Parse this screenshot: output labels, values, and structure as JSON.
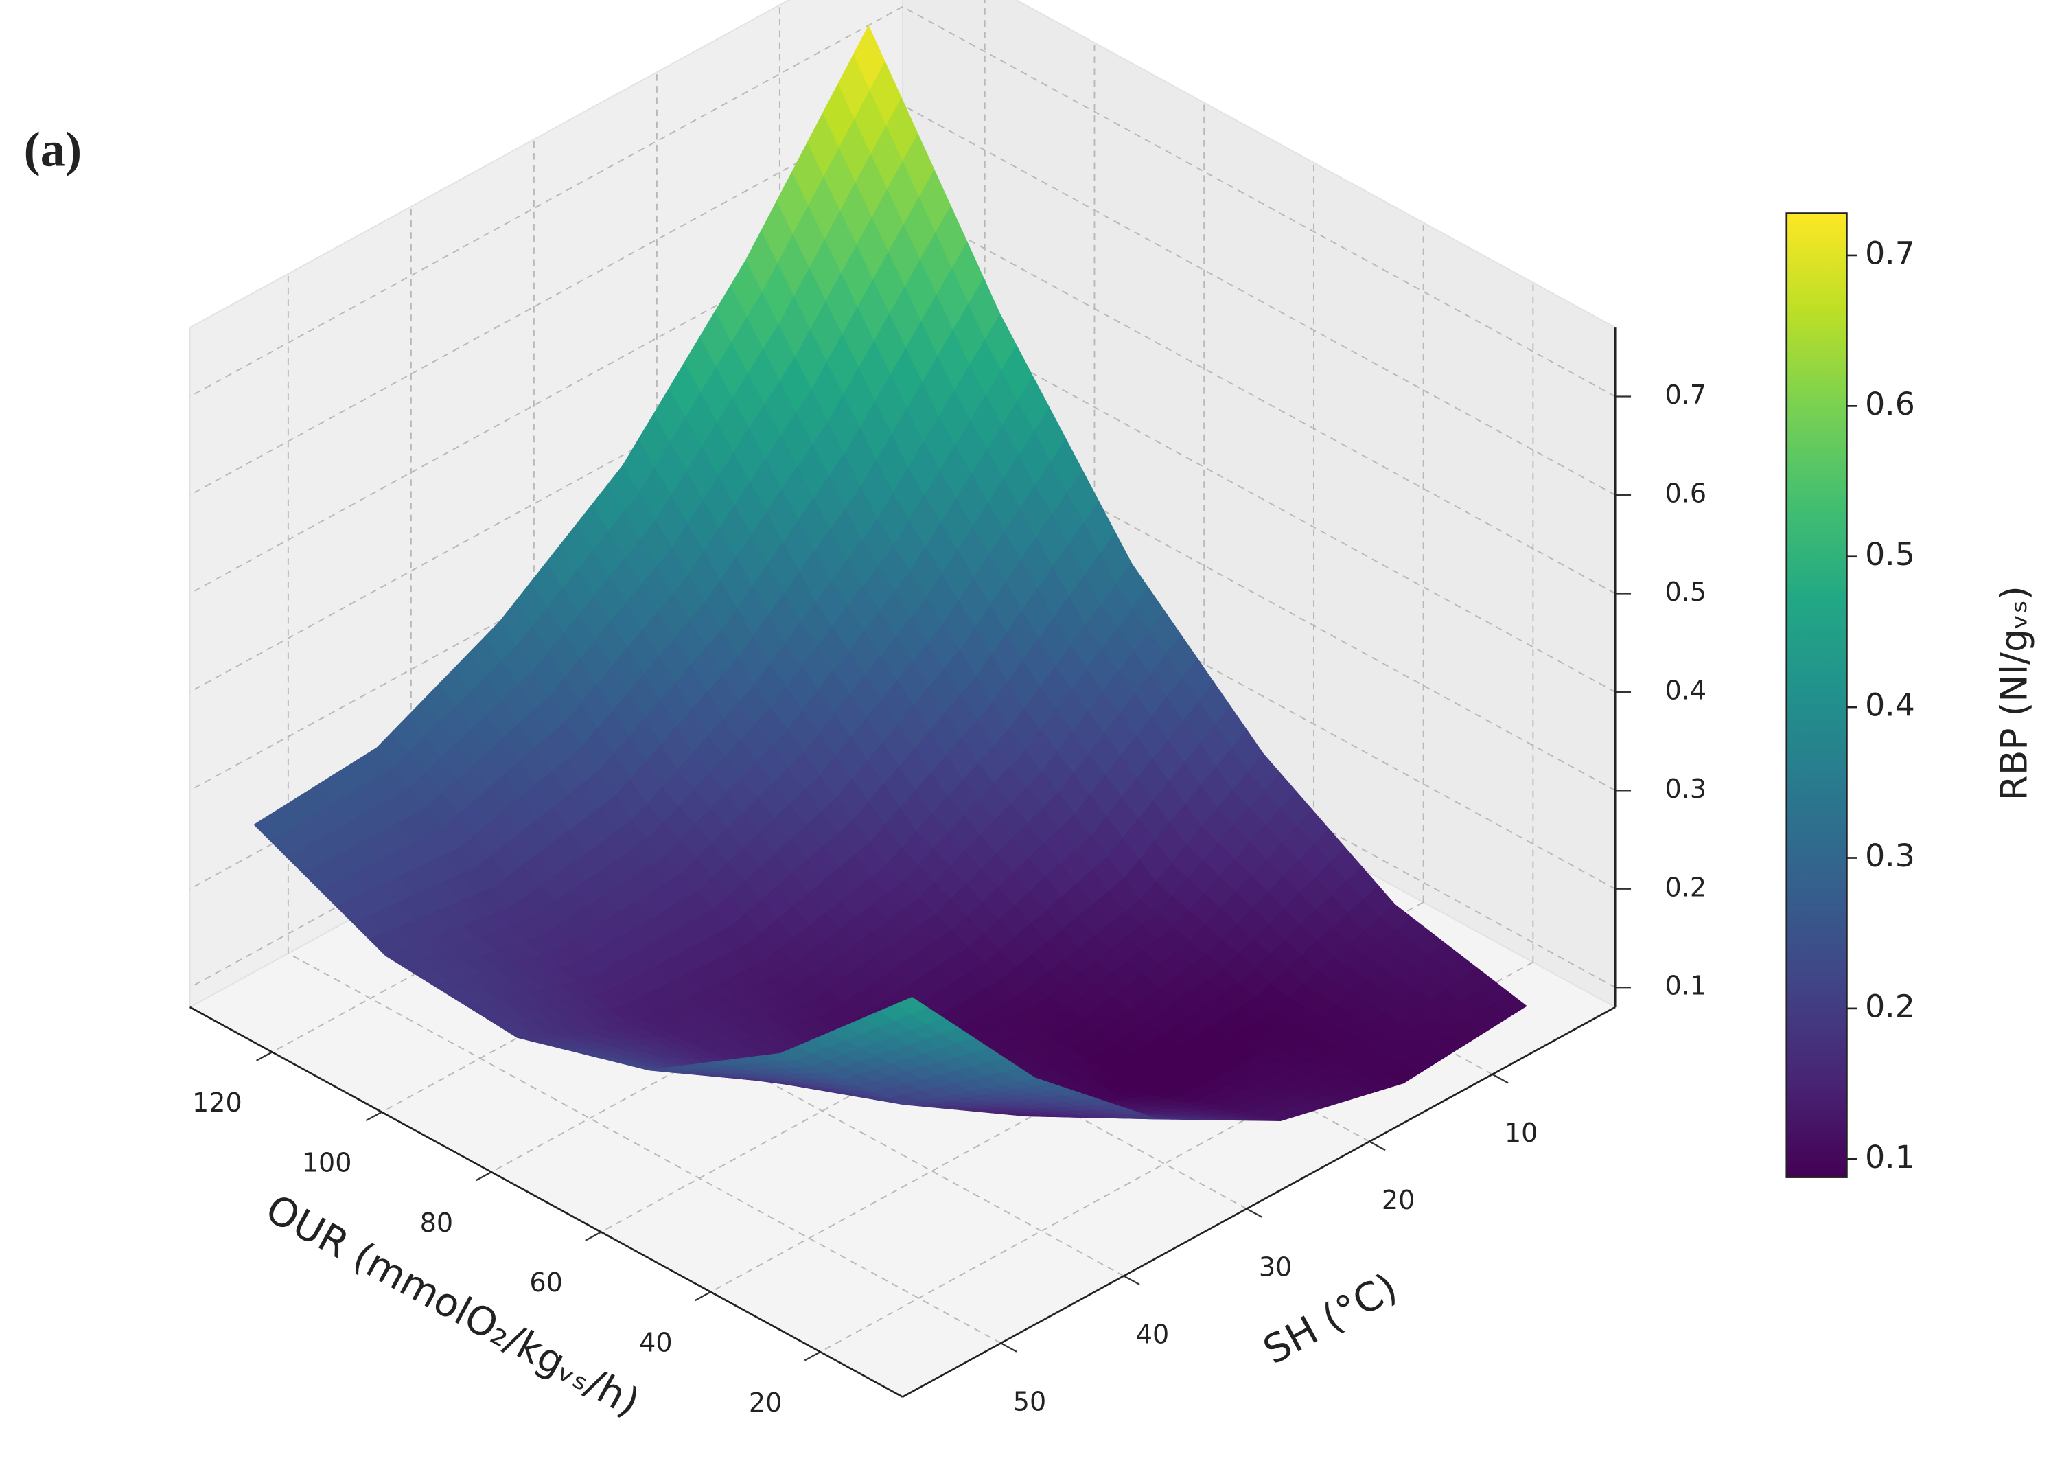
{
  "chart_data": {
    "type": "surface",
    "label": "(a)",
    "x_label": "OUR (mmolO₂/kgᵥₛ/h)",
    "y_label": "SH (°C)",
    "colorbar_label": "RBP (Nl/gᵥₛ)",
    "x": [
      10,
      34,
      58,
      82,
      106,
      130
    ],
    "y": [
      5,
      15,
      25,
      35,
      45,
      55
    ],
    "z": [
      [
        0.1,
        0.13,
        0.21,
        0.33,
        0.51,
        0.73
      ],
      [
        0.09,
        0.09,
        0.13,
        0.23,
        0.37,
        0.56
      ],
      [
        0.12,
        0.08,
        0.1,
        0.16,
        0.27,
        0.42
      ],
      [
        0.19,
        0.12,
        0.1,
        0.13,
        0.2,
        0.33
      ],
      [
        0.3,
        0.2,
        0.15,
        0.14,
        0.18,
        0.27
      ],
      [
        0.45,
        0.32,
        0.23,
        0.19,
        0.2,
        0.26
      ]
    ],
    "xlim": [
      5,
      135
    ],
    "ylim": [
      0,
      58
    ],
    "zlim": [
      0.08,
      0.77
    ],
    "xticks": [
      20,
      40,
      60,
      80,
      100,
      120
    ],
    "yticks": [
      10,
      20,
      30,
      40,
      50
    ],
    "zticks": [
      0.1,
      0.2,
      0.3,
      0.4,
      0.5,
      0.6,
      0.7
    ],
    "colormap": "viridis",
    "clim": [
      0.088,
      0.728
    ],
    "cticks": [
      0.1,
      0.2,
      0.3,
      0.4,
      0.5,
      0.6,
      0.7
    ],
    "grid": true
  }
}
